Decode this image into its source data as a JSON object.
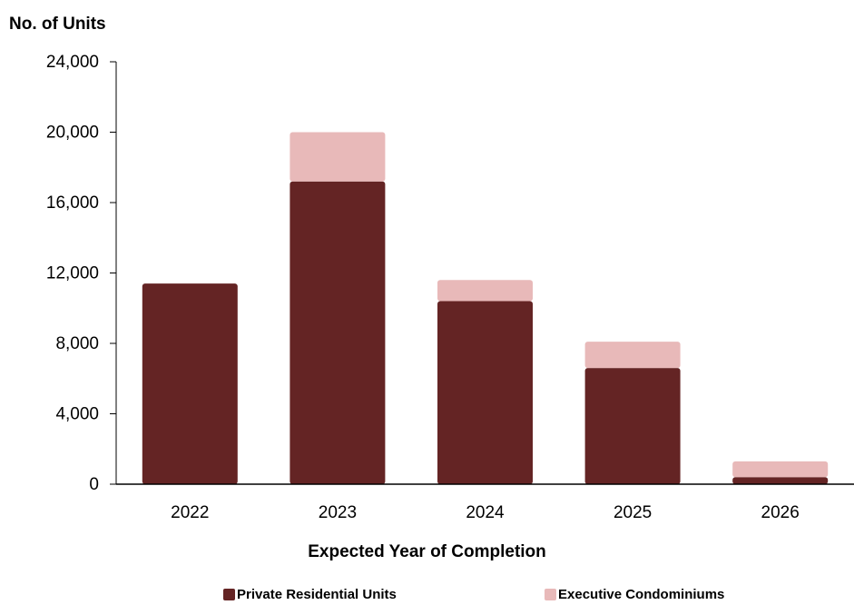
{
  "chart_data": {
    "type": "bar",
    "stacked": true,
    "categories": [
      "2022",
      "2023",
      "2024",
      "2025",
      "2026"
    ],
    "series": [
      {
        "name": "Private Residential Units",
        "values": [
          11400,
          17200,
          10400,
          6600,
          400
        ],
        "color": "#642424"
      },
      {
        "name": "Executive Condominiums",
        "values": [
          0,
          2800,
          1200,
          1500,
          900
        ],
        "color": "#e8b9b9"
      }
    ],
    "ylabel": "No. of Units",
    "xlabel": "Expected Year of Completion",
    "ylim": [
      0,
      24000
    ],
    "yticks": [
      0,
      4000,
      8000,
      12000,
      16000,
      20000,
      24000
    ],
    "ytick_labels": [
      "0",
      "4,000",
      "8,000",
      "12,000",
      "16,000",
      "20,000",
      "24,000"
    ],
    "grid": false,
    "legend_position": "bottom"
  }
}
